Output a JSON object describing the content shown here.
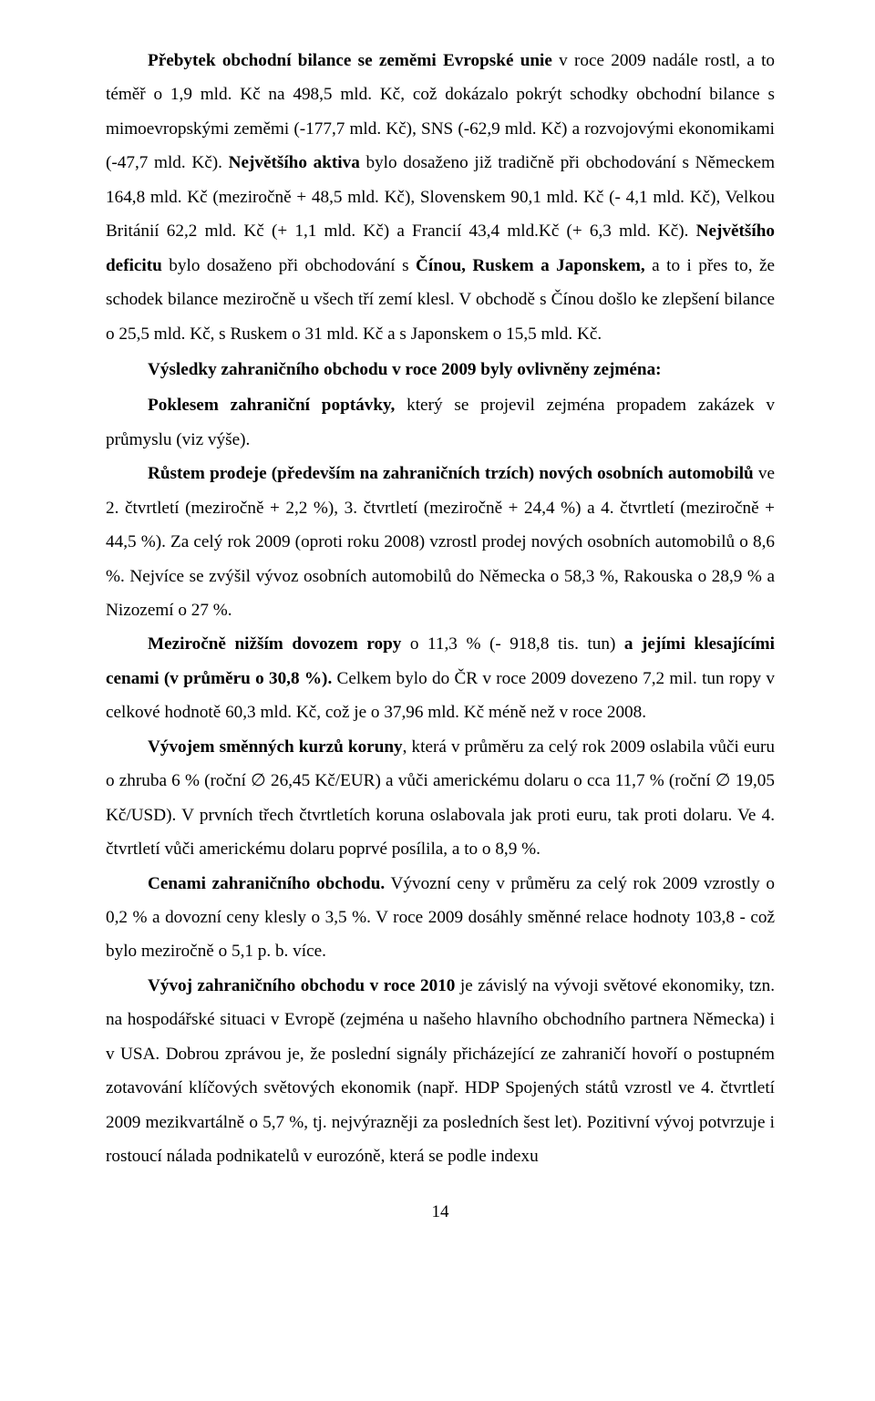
{
  "paragraphs": {
    "p1": {
      "pre": "Přebytek obchodní bilance se zeměmi Evropské unie",
      "mid1": " v roce 2009 nadále rostl, a to téměř o 1,9 mld. Kč na 498,5 mld. Kč, což dokázalo pokrýt schodky obchodní bilance s mimoevropskými zeměmi (-177,7 mld. Kč), SNS (-62,9 mld. Kč) a rozvojovými ekonomikami (-47,7 mld. Kč). ",
      "bold2": "Největšího aktiva",
      "mid2": " bylo dosaženo již tradičně při obchodování s Německem 164,8 mld. Kč (meziročně + 48,5 mld. Kč), Slovenskem 90,1 mld. Kč (- 4,1 mld. Kč), Velkou Británií 62,2 mld. Kč (+ 1,1 mld. Kč) a Francií 43,4 mld.Kč (+ 6,3 mld. Kč). ",
      "bold3": "Největšího deficitu",
      "mid3": " bylo dosaženo při obchodování s ",
      "bold4": "Čínou, Ruskem a Japonskem,",
      "mid4": " a to i přes to, že schodek bilance meziročně u všech tří zemí klesl. V obchodě s Čínou došlo ke zlepšení bilance o 25,5 mld. Kč, s Ruskem o 31 mld. Kč a s Japonskem o 15,5 mld. Kč."
    },
    "subhead": "Výsledky zahraničního obchodu v roce 2009 byly ovlivněny zejména:",
    "p2": {
      "bold": "Poklesem zahraniční poptávky,",
      "rest": " který se projevil zejména propadem zakázek v průmyslu (viz výše)."
    },
    "p3": {
      "bold": "Růstem prodeje (především na zahraničních trzích) nových osobních automobilů",
      "rest": " ve 2. čtvrtletí (meziročně + 2,2 %), 3. čtvrtletí (meziročně + 24,4 %) a 4. čtvrtletí (meziročně + 44,5 %). Za celý rok 2009 (oproti roku 2008) vzrostl prodej nových osobních automobilů o 8,6 %. Nejvíce se zvýšil vývoz osobních automobilů do Německa o 58,3 %, Rakouska o 28,9 % a Nizozemí o 27 %."
    },
    "p4": {
      "bold1": "Meziročně nižším dovozem ropy",
      "mid1": " o 11,3 % (- 918,8 tis. tun) ",
      "bold2": "a jejími klesajícími cenami (v průměru o 30,8 %).",
      "rest": " Celkem bylo do ČR v roce 2009 dovezeno 7,2 mil. tun ropy v celkové hodnotě 60,3 mld. Kč, což je o 37,96 mld. Kč méně než v roce 2008."
    },
    "p5": {
      "bold": "Vývojem směnných kurzů koruny",
      "rest": ", která v průměru za celý rok 2009 oslabila vůči euru o zhruba 6 % (roční ∅ 26,45 Kč/EUR) a vůči americkému dolaru o cca 11,7 % (roční ∅ 19,05 Kč/USD). V prvních třech čtvrtletích koruna oslabovala jak proti euru, tak proti dolaru. Ve 4. čtvrtletí vůči americkému dolaru poprvé posílila, a to o 8,9 %."
    },
    "p6": {
      "bold": "Cenami zahraničního obchodu.",
      "rest": " Vývozní ceny v průměru za celý rok 2009 vzrostly o 0,2 % a dovozní ceny klesly o 3,5 %. V roce 2009 dosáhly směnné relace hodnoty 103,8 - což bylo meziročně o 5,1 p. b. více."
    },
    "p7": {
      "bold": "Vývoj zahraničního obchodu v roce 2010",
      "rest": " je závislý na vývoji světové ekonomiky, tzn. na hospodářské situaci v Evropě (zejména u našeho hlavního obchodního partnera Německa) i v USA. Dobrou zprávou je, že poslední signály přicházející ze zahraničí hovoří o postupném zotavování klíčových světových ekonomik (např. HDP Spojených států vzrostl ve 4. čtvrtletí 2009 mezikvartálně o 5,7 %, tj. nejvýrazněji za posledních šest let). Pozitivní vývoj potvrzuje i rostoucí nálada podnikatelů v eurozóně, která se podle indexu"
    }
  },
  "pageNumber": "14"
}
